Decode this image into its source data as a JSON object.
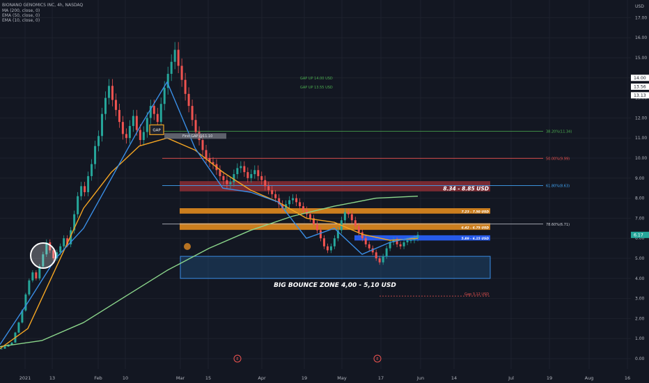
{
  "header": {
    "lines": [
      "BIONANO GENOMICS INC, 4h, NASDAQ",
      "MA (200, close, 0)",
      "EMA (50, close, 0)",
      "EMA (10, close, 0)"
    ],
    "currency": "USD"
  },
  "colors": {
    "background": "#131722",
    "candle_up": "#26a69a",
    "candle_down": "#ef5350",
    "ma200": "#8bd68b",
    "ema50": "#f5a623",
    "ema10": "#3a8ee6",
    "orange_zone": "#e08a1e",
    "red_zone": "#8b2e35",
    "blue_zone": "#2962ff",
    "bounce_zone": "#1f4e79"
  },
  "chart_data": {
    "type": "candlestick",
    "ylim": [
      -0.3,
      17.7
    ],
    "y_ticks": [
      0,
      1,
      2,
      3,
      4,
      5,
      6,
      7,
      8,
      9,
      10,
      11,
      12,
      13,
      14,
      15,
      16,
      17
    ],
    "x_labels": [
      "2021",
      "13",
      "Feb",
      "10",
      "Mar",
      "15",
      "Apr",
      "19",
      "May",
      "17",
      "Jun",
      "14",
      "Jul",
      "19",
      "Aug",
      "16"
    ],
    "price_badges": [
      {
        "value": "14.00",
        "y": 14.0,
        "style": "white"
      },
      {
        "value": "13.56",
        "y": 13.56,
        "style": "white"
      },
      {
        "value": "13.13",
        "y": 13.13,
        "style": "white"
      },
      {
        "value": "6.17",
        "y": 6.17,
        "style": "green"
      }
    ],
    "fib_levels": [
      {
        "label": "38.20%(11.34)",
        "y": 11.34,
        "color": "#4caf50"
      },
      {
        "label": "50.00%(9.99)",
        "y": 9.99,
        "color": "#ef5350"
      },
      {
        "label": "61.80%(8.63)",
        "y": 8.63,
        "color": "#42a5f5"
      },
      {
        "label": "78.60%(6.71)",
        "y": 6.71,
        "color": "#d1d4dc"
      }
    ],
    "zones": [
      {
        "label": "8.34 - 8.85 USD",
        "low": 8.34,
        "high": 8.85,
        "kind": "red"
      },
      {
        "label": "7.23 - 7.50 USD",
        "low": 7.23,
        "high": 7.5,
        "kind": "orange"
      },
      {
        "label": "6.42 - 6.75 USD",
        "low": 6.42,
        "high": 6.75,
        "kind": "orange"
      },
      {
        "label": "5.89 - 6.15 USD",
        "low": 5.89,
        "high": 6.15,
        "kind": "blue"
      }
    ],
    "bounce_zone": {
      "label": "BIG BOUNCE ZONE 4,00 - 5,10 USD",
      "low": 4.0,
      "high": 5.1
    },
    "gap_fill": {
      "label": "First GAP @11.10",
      "y": 11.1
    },
    "gap_box_label": "GAP",
    "gap_up_labels": [
      {
        "label": "GAP UP 14.00 USD",
        "y": 14.0
      },
      {
        "label": "GAP UP 13.55 USD",
        "y": 13.55
      }
    ],
    "gap_low": {
      "label": "Gap 3,12 USD",
      "y": 3.12
    },
    "event_markers": [
      "E",
      "E"
    ],
    "series": [
      {
        "name": "MA (200, close, 0)",
        "y": [
          0.6,
          0.9,
          1.8,
          3.1,
          4.4,
          5.5,
          6.4,
          7.1,
          7.6,
          8.0,
          8.1
        ]
      },
      {
        "name": "EMA (50, close, 0)",
        "y": [
          0.5,
          1.5,
          4.5,
          7.5,
          9.3,
          10.6,
          11.0,
          10.4,
          9.3,
          8.4,
          7.8,
          7.0,
          6.8,
          6.2,
          5.9,
          6.0
        ]
      },
      {
        "name": "EMA (10, close, 0)",
        "y": [
          0.7,
          2.8,
          5.0,
          6.5,
          9.0,
          11.5,
          13.8,
          10.5,
          8.5,
          8.3,
          7.8,
          6.0,
          6.5,
          5.2,
          5.8,
          6.1
        ]
      }
    ],
    "candles_close": [
      0.5,
      0.6,
      0.7,
      0.8,
      1.3,
      1.8,
      2.4,
      3.2,
      3.9,
      4.3,
      4.0,
      4.6,
      5.2,
      5.8,
      5.4,
      5.0,
      5.3,
      5.6,
      6.0,
      5.7,
      6.4,
      7.2,
      8.1,
      8.6,
      8.3,
      9.1,
      9.7,
      10.6,
      11.1,
      12.2,
      13.0,
      13.6,
      12.9,
      12.4,
      11.8,
      11.2,
      11.0,
      11.6,
      12.1,
      11.4,
      10.9,
      11.3,
      12.0,
      12.6,
      12.2,
      11.8,
      12.7,
      13.5,
      14.2,
      14.8,
      15.4,
      14.6,
      13.9,
      13.2,
      12.6,
      11.9,
      11.3,
      10.9,
      10.4,
      10.0,
      9.8,
      9.7,
      9.4,
      9.1,
      8.9,
      8.7,
      8.8,
      9.2,
      9.5,
      9.6,
      9.3,
      9.0,
      9.2,
      9.4,
      9.1,
      8.9,
      8.6,
      8.4,
      8.2,
      8.0,
      7.7,
      7.5,
      7.7,
      7.9,
      8.0,
      7.8,
      7.6,
      7.4,
      7.2,
      7.0,
      6.7,
      6.4,
      6.0,
      5.6,
      5.4,
      5.6,
      6.0,
      6.4,
      6.9,
      7.3,
      7.2,
      6.9,
      6.6,
      6.3,
      6.0,
      5.7,
      5.5,
      5.3,
      5.0,
      4.8,
      5.1,
      5.5,
      5.8,
      5.9,
      5.7,
      5.6,
      5.8,
      5.9,
      5.9,
      6.0,
      6.17
    ]
  }
}
